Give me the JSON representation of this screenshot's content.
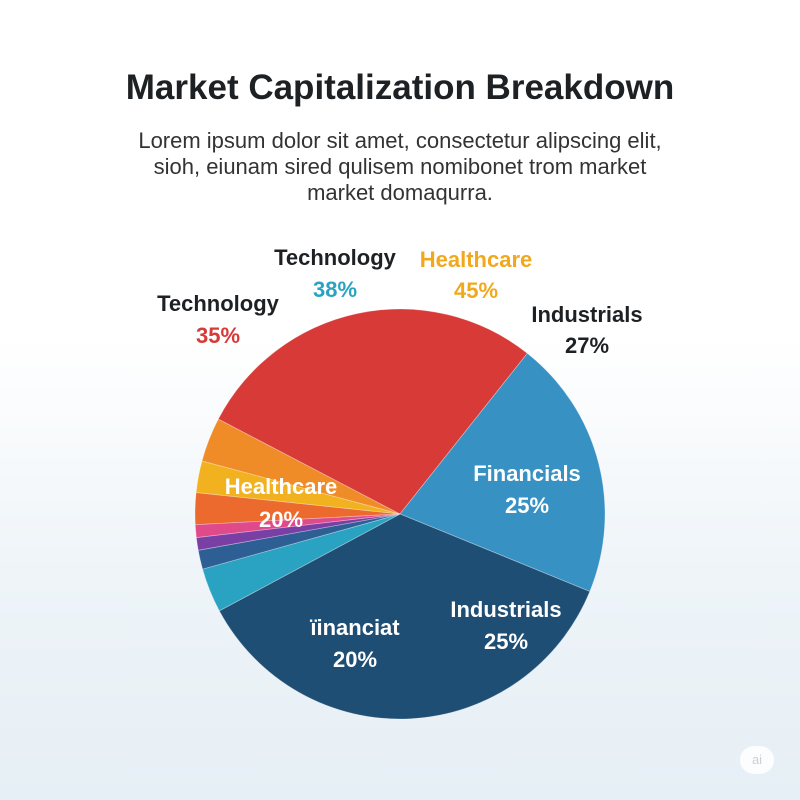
{
  "title": "Market Capitalization Breakdown",
  "subtitle_lines": [
    "Lorem ipsum dolor sit amet, consectetur alipscing elit,",
    "sioh, eiunam sired qulisem nomibonet trom market",
    "market domaqurra."
  ],
  "watermark": "ai",
  "chart_data": {
    "type": "pie",
    "slices": [
      {
        "value": 2.5,
        "color": "#ec6a2e"
      },
      {
        "value": 2.5,
        "color": "#f2b21f"
      },
      {
        "value": 3.5,
        "color": "#f08c28"
      },
      {
        "value": 28,
        "color": "#d83a37"
      },
      {
        "value": 20.5,
        "color": "#3791c3"
      },
      {
        "value": 36,
        "color": "#1f4e74"
      },
      {
        "value": 3.5,
        "color": "#2aa3c2"
      },
      {
        "value": 1.5,
        "color": "#2e5f94"
      },
      {
        "value": 1,
        "color": "#7a3fa5"
      },
      {
        "value": 1,
        "color": "#e04a8a"
      }
    ],
    "labels": [
      {
        "name": "Technology",
        "value": "35%",
        "color": "#d83a37"
      },
      {
        "name": "Technology",
        "value": "38%",
        "color": "#2aa3c2"
      },
      {
        "name": "Healthcare",
        "value": "45%",
        "color": "#f2a81c"
      },
      {
        "name": "Industrials",
        "value": "27%",
        "color": "#1e2124"
      },
      {
        "name": "Healthcare",
        "value": "20%",
        "color": "#ffffff"
      },
      {
        "name": "Financials",
        "value": "25%",
        "color": "#ffffff"
      },
      {
        "name": "Industrials",
        "value": "25%",
        "color": "#ffffff"
      },
      {
        "name": "ïinanciat",
        "value": "20%",
        "color": "#ffffff"
      }
    ]
  }
}
